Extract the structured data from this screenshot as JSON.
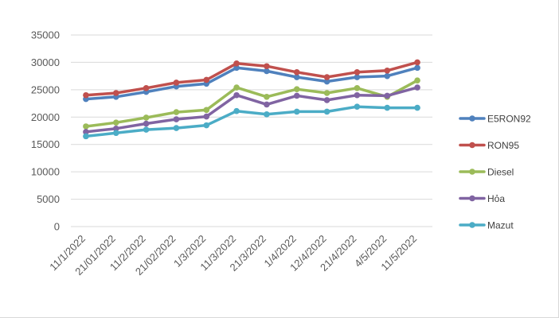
{
  "chart_data": {
    "type": "line",
    "categories": [
      "11/1/2022",
      "21/01/2022",
      "11/2/2022",
      "21/02/2022",
      "1/3/2022",
      "11/3/2022",
      "21/3/2022",
      "1/4/2022",
      "12/4/2022",
      "21/4/2022",
      "4/5/2022",
      "11/5/2022"
    ],
    "ylim": [
      0,
      35000
    ],
    "yticks": [
      0,
      5000,
      10000,
      15000,
      20000,
      25000,
      30000,
      35000
    ],
    "grid": true,
    "legend_position": "right",
    "series": [
      {
        "name": "E5RON92",
        "color": "#4F81BD",
        "values": [
          23300,
          23700,
          24600,
          25600,
          26100,
          29000,
          28400,
          27300,
          26500,
          27300,
          27500,
          29000
        ]
      },
      {
        "name": "RON95",
        "color": "#C0504D",
        "values": [
          24000,
          24400,
          25300,
          26300,
          26800,
          29800,
          29300,
          28200,
          27300,
          28200,
          28500,
          30000
        ]
      },
      {
        "name": "Diesel",
        "color": "#9BBB59",
        "values": [
          18300,
          19000,
          19900,
          20900,
          21300,
          25400,
          23700,
          25100,
          24400,
          25300,
          23700,
          26700
        ]
      },
      {
        "name": "Hỏa",
        "color": "#8064A2",
        "values": [
          17300,
          17900,
          18800,
          19600,
          20100,
          24000,
          22300,
          23900,
          23100,
          24000,
          23900,
          25400
        ]
      },
      {
        "name": "Mazut",
        "color": "#4BACC6",
        "values": [
          16500,
          17100,
          17700,
          18000,
          18500,
          21100,
          20500,
          21000,
          21000,
          21900,
          21700,
          21700
        ]
      }
    ]
  }
}
